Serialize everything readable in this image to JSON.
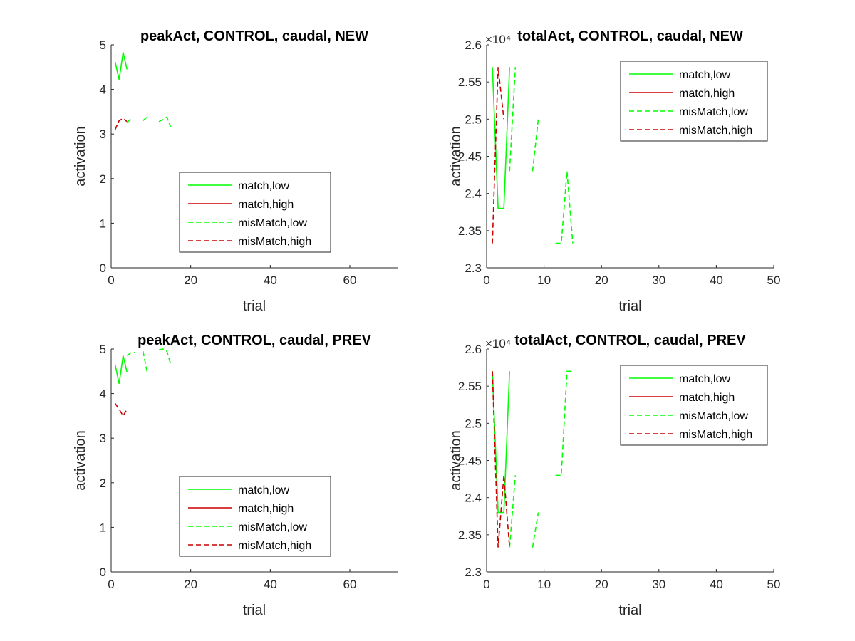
{
  "colors": {
    "low": "#00ff00",
    "high": "#cc0000",
    "axis": "#262626",
    "background": "#ffffff"
  },
  "chart_data": [
    {
      "type": "line",
      "title": "peakAct, CONTROL, caudal, NEW",
      "xlabel": "trial",
      "ylabel": "activation",
      "xlim": [
        0,
        72
      ],
      "ylim": [
        0,
        5
      ],
      "xticks": [
        "0",
        "20",
        "40",
        "60"
      ],
      "yticks": [
        "0",
        "1",
        "2",
        "3",
        "4",
        "5"
      ],
      "exponent_label": "",
      "legend_position": "lower-center",
      "grid": false,
      "series": [
        {
          "name": "match,low",
          "style": "solid",
          "color": "#00ff00",
          "x": [
            1,
            2,
            3,
            4
          ],
          "y": [
            4.62,
            4.22,
            4.83,
            4.45
          ]
        },
        {
          "name": "match,high",
          "style": "solid",
          "color": "#cc0000",
          "x": [],
          "y": []
        },
        {
          "name": "misMatch,low",
          "style": "dashed",
          "color": "#00ff00",
          "x": [
            4,
            5,
            null,
            8,
            9,
            null,
            12,
            13,
            14,
            15
          ],
          "y": [
            3.25,
            3.35,
            null,
            3.3,
            3.38,
            null,
            3.28,
            3.32,
            3.38,
            3.15
          ]
        },
        {
          "name": "misMatch,high",
          "style": "dashed",
          "color": "#cc0000",
          "x": [
            1,
            2,
            3,
            4
          ],
          "y": [
            3.1,
            3.3,
            3.35,
            3.28
          ]
        }
      ]
    },
    {
      "type": "line",
      "title": "totalAct, CONTROL, caudal, NEW",
      "xlabel": "trial",
      "ylabel": "activation",
      "xlim": [
        0,
        50
      ],
      "ylim": [
        2.3,
        2.6
      ],
      "xticks": [
        "0",
        "10",
        "20",
        "30",
        "40",
        "50"
      ],
      "yticks": [
        "2.3",
        "2.35",
        "2.4",
        "2.45",
        "2.5",
        "2.55",
        "2.6"
      ],
      "exponent_label": "×10⁴",
      "legend_position": "top-right",
      "grid": false,
      "series": [
        {
          "name": "match,low",
          "style": "solid",
          "color": "#00ff00",
          "x": [
            1,
            2,
            3,
            4
          ],
          "y": [
            2.57,
            2.38,
            2.38,
            2.57
          ]
        },
        {
          "name": "match,high",
          "style": "solid",
          "color": "#cc0000",
          "x": [],
          "y": []
        },
        {
          "name": "misMatch,low",
          "style": "dashed",
          "color": "#00ff00",
          "x": [
            4,
            5,
            null,
            8,
            9,
            null,
            12,
            13,
            14,
            15
          ],
          "y": [
            2.43,
            2.57,
            null,
            2.43,
            2.5,
            null,
            2.333,
            2.333,
            2.43,
            2.333
          ]
        },
        {
          "name": "misMatch,high",
          "style": "dashed",
          "color": "#cc0000",
          "x": [
            1,
            2,
            3
          ],
          "y": [
            2.333,
            2.57,
            2.5
          ]
        }
      ]
    },
    {
      "type": "line",
      "title": "peakAct, CONTROL, caudal, PREV",
      "xlabel": "trial",
      "ylabel": "activation",
      "xlim": [
        0,
        72
      ],
      "ylim": [
        0,
        5
      ],
      "xticks": [
        "0",
        "20",
        "40",
        "60"
      ],
      "yticks": [
        "0",
        "1",
        "2",
        "3",
        "4",
        "5"
      ],
      "exponent_label": "",
      "legend_position": "lower-center",
      "grid": false,
      "series": [
        {
          "name": "match,low",
          "style": "solid",
          "color": "#00ff00",
          "x": [
            1,
            2,
            3,
            4
          ],
          "y": [
            4.65,
            4.22,
            4.85,
            4.48
          ]
        },
        {
          "name": "match,high",
          "style": "solid",
          "color": "#cc0000",
          "x": [],
          "y": []
        },
        {
          "name": "misMatch,low",
          "style": "dashed",
          "color": "#00ff00",
          "x": [
            4,
            5,
            6,
            null,
            8,
            9,
            null,
            12,
            13,
            14,
            15
          ],
          "y": [
            4.85,
            4.92,
            4.92,
            null,
            4.95,
            4.5,
            null,
            4.98,
            5.0,
            4.95,
            4.65
          ]
        },
        {
          "name": "misMatch,high",
          "style": "dashed",
          "color": "#cc0000",
          "x": [
            1,
            2,
            3,
            4
          ],
          "y": [
            3.78,
            3.65,
            3.5,
            3.65
          ]
        }
      ]
    },
    {
      "type": "line",
      "title": "totalAct, CONTROL, caudal, PREV",
      "xlabel": "trial",
      "ylabel": "activation",
      "xlim": [
        0,
        50
      ],
      "ylim": [
        2.3,
        2.6
      ],
      "xticks": [
        "0",
        "10",
        "20",
        "30",
        "40",
        "50"
      ],
      "yticks": [
        "2.3",
        "2.35",
        "2.4",
        "2.45",
        "2.5",
        "2.55",
        "2.6"
      ],
      "exponent_label": "×10⁴",
      "legend_position": "top-right",
      "grid": false,
      "series": [
        {
          "name": "match,low",
          "style": "solid",
          "color": "#00ff00",
          "x": [
            1,
            2,
            3,
            4
          ],
          "y": [
            2.57,
            2.38,
            2.38,
            2.57
          ]
        },
        {
          "name": "match,high",
          "style": "solid",
          "color": "#cc0000",
          "x": [],
          "y": []
        },
        {
          "name": "misMatch,low",
          "style": "dashed",
          "color": "#00ff00",
          "x": [
            4,
            5,
            null,
            8,
            9,
            null,
            12,
            13,
            14,
            15
          ],
          "y": [
            2.333,
            2.43,
            null,
            2.333,
            2.38,
            null,
            2.43,
            2.43,
            2.57,
            2.57
          ]
        },
        {
          "name": "misMatch,high",
          "style": "dashed",
          "color": "#cc0000",
          "x": [
            1,
            2,
            3,
            4
          ],
          "y": [
            2.57,
            2.333,
            2.43,
            2.333
          ]
        }
      ]
    }
  ]
}
